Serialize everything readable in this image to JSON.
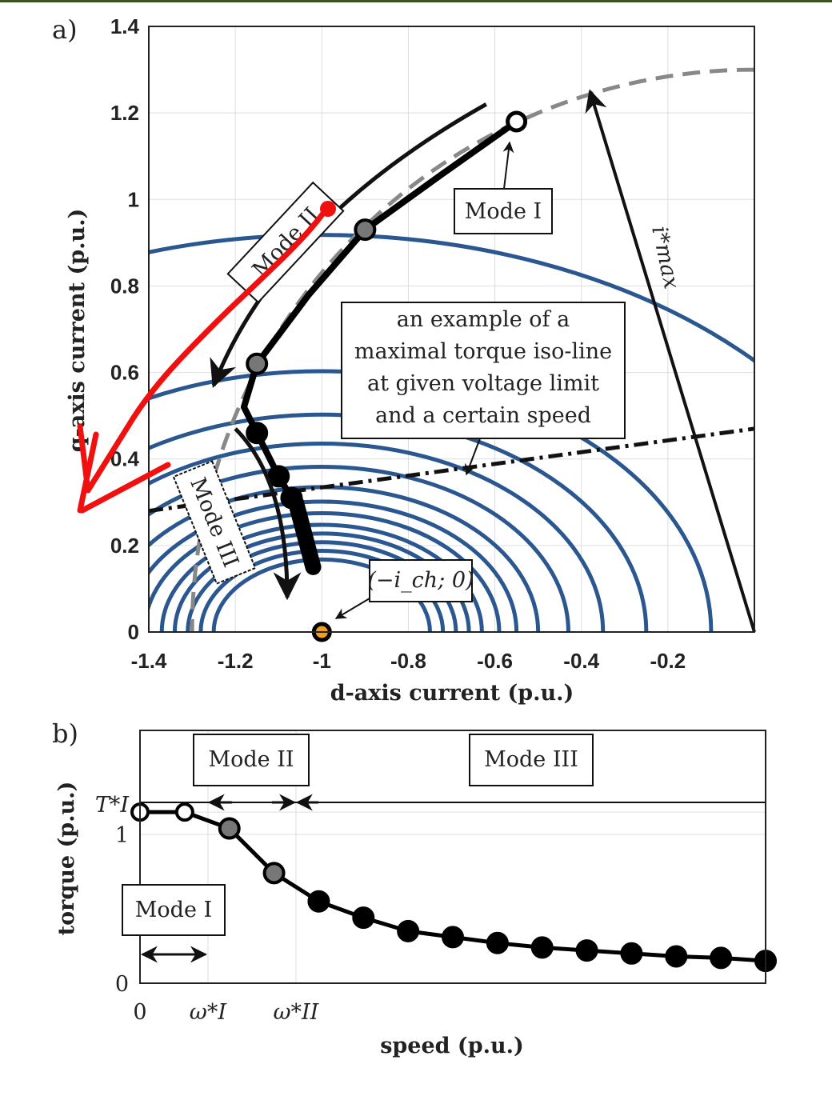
{
  "chart_data": [
    {
      "type": "line",
      "panel_label": "a)",
      "xlabel": "d-axis current (p.u.)",
      "ylabel": "q-axis current (p.u.)",
      "xlim": [
        -1.4,
        0
      ],
      "ylim": [
        0,
        1.4
      ],
      "xticks": [
        "-1.4",
        "-1.2",
        "-1",
        "-0.8",
        "-0.6",
        "-0.4",
        "-0.2"
      ],
      "yticks": [
        "0",
        "0.2",
        "0.4",
        "0.6",
        "0.8",
        "1",
        "1.2",
        "1.4"
      ],
      "grid": true,
      "voltage_ellipses": {
        "center": [
          -1,
          0
        ],
        "q_to_d_ratio": 0.67,
        "d_semi_axes": [
          1.37,
          0.9,
          0.75,
          0.65,
          0.57,
          0.5,
          0.45,
          0.41,
          0.37,
          0.34,
          0.31,
          0.28,
          0.25
        ],
        "color": "#2b5790"
      },
      "current_limit_circle": {
        "radius": 1.3,
        "label": "i*max",
        "color": "#888888"
      },
      "max_torque_trajectory": {
        "d": [
          -0.55,
          -0.72,
          -0.9,
          -1.03,
          -1.15,
          -1.18,
          -1.15,
          -1.1,
          -1.07,
          -1.04,
          -1.02
        ],
        "q": [
          1.18,
          1.06,
          0.93,
          0.78,
          0.62,
          0.52,
          0.46,
          0.36,
          0.31,
          0.22,
          0.15
        ]
      },
      "trajectory_markers": [
        {
          "d": -0.55,
          "q": 1.18,
          "style": "open"
        },
        {
          "d": -0.9,
          "q": 0.93,
          "style": "gray"
        },
        {
          "d": -1.15,
          "q": 0.62,
          "style": "gray"
        },
        {
          "d": -1.15,
          "q": 0.46,
          "style": "black"
        },
        {
          "d": -1.1,
          "q": 0.36,
          "style": "black"
        },
        {
          "d": -1.07,
          "q": 0.31,
          "style": "black"
        }
      ],
      "iso_line": {
        "d": [
          -1.4,
          0
        ],
        "q": [
          0.28,
          0.47
        ]
      },
      "center_point": {
        "d": -1,
        "q": 0,
        "color": "#f0a020"
      },
      "annotations": {
        "mode1": "Mode I",
        "mode2": "Mode II",
        "mode3": "Mode III",
        "center": "(−i_ch; 0)",
        "iso": [
          "an example of a",
          "maximal torque iso-line",
          "at given voltage limit",
          "and a certain speed"
        ],
        "imax": "i*max"
      }
    },
    {
      "type": "line",
      "panel_label": "b)",
      "xlabel": "speed (p.u.)",
      "ylabel": "torque (p.u.)",
      "xticks": [
        "0",
        "ω*I",
        "ω*II"
      ],
      "xtick_values": [
        0,
        1.52,
        3.49
      ],
      "yticks": [
        "0",
        "1",
        "T*I"
      ],
      "ytick_values": [
        0,
        1,
        1.15
      ],
      "xlim": [
        0,
        14
      ],
      "ylim": [
        0,
        1.7
      ],
      "x": [
        0,
        1,
        2,
        3,
        4,
        5,
        6,
        7,
        8,
        9,
        10,
        11,
        12,
        13,
        14
      ],
      "y": [
        1.15,
        1.15,
        1.04,
        0.74,
        0.55,
        0.44,
        0.35,
        0.31,
        0.27,
        0.24,
        0.22,
        0.2,
        0.18,
        0.17,
        0.15
      ],
      "marker_styles": [
        "open",
        "open",
        "gray",
        "gray",
        "black",
        "black",
        "black",
        "black",
        "black",
        "black",
        "black",
        "black",
        "black",
        "black",
        "black"
      ],
      "modes": [
        {
          "label": "Mode I",
          "from": 0,
          "to": 1.52
        },
        {
          "label": "Mode II",
          "from": 1.52,
          "to": 3.49
        },
        {
          "label": "Mode III",
          "from": 3.49,
          "to": 14
        }
      ]
    }
  ]
}
